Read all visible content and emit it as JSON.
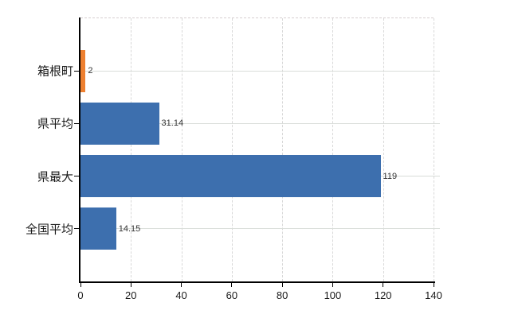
{
  "chart_data": {
    "type": "bar",
    "orientation": "horizontal",
    "title": "",
    "categories": [
      "箱根町",
      "県平均",
      "県最大",
      "全国平均"
    ],
    "values": [
      2,
      31.14,
      119,
      14.15
    ],
    "value_labels": [
      "2",
      "31.14",
      "119",
      "14.15"
    ],
    "bar_colors": [
      "#ee8030",
      "#3d6fae",
      "#3d6fae",
      "#3d6fae"
    ],
    "xlim": [
      0,
      140
    ],
    "x_ticks": [
      0,
      20,
      40,
      60,
      80,
      100,
      120,
      140
    ],
    "grid": true,
    "legend": false,
    "background_color": "#ffffff",
    "axis_color": "#000000",
    "grid_color": "#d9d9d9",
    "tick_label_color": "#1a1a1a",
    "value_label_color": "#333333"
  }
}
